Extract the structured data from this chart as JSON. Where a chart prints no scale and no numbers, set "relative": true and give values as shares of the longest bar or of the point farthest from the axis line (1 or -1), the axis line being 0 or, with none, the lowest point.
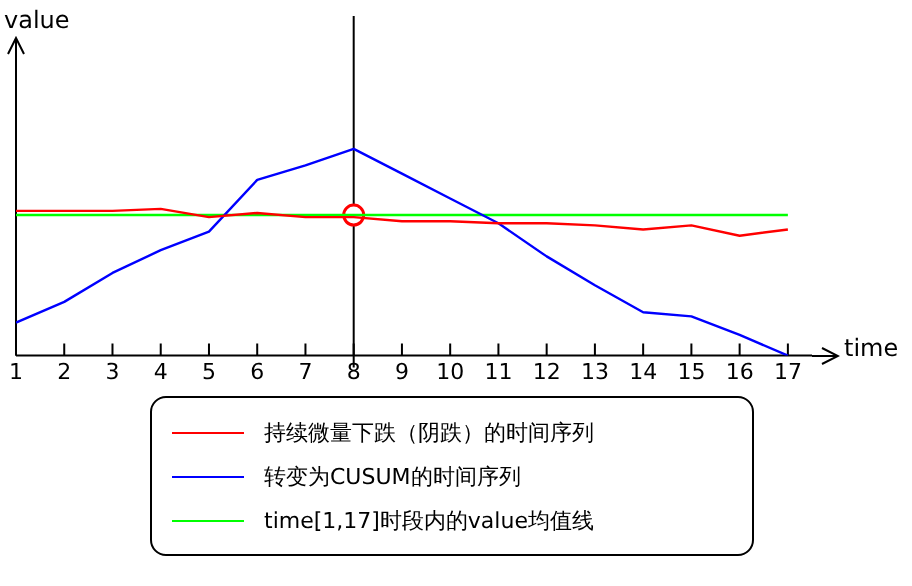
{
  "chart_data": {
    "type": "line",
    "relative": true,
    "xlabel": "time",
    "ylabel": "value",
    "x": [
      1,
      2,
      3,
      4,
      5,
      6,
      7,
      8,
      9,
      10,
      11,
      12,
      13,
      14,
      15,
      16,
      17
    ],
    "xlim": [
      1,
      17.5
    ],
    "xticks": [
      1,
      2,
      3,
      4,
      5,
      6,
      7,
      8,
      9,
      10,
      11,
      12,
      13,
      14,
      15,
      16,
      17
    ],
    "tick_labels": "x",
    "grid": false,
    "legend": "bottom",
    "marker": "none",
    "line_style": "solid",
    "ref_lines": [
      {
        "axis": "x",
        "value": 8,
        "color": "#000000"
      }
    ],
    "series": [
      {
        "name": "持续微量下跌（阴跌）的时间序列",
        "color": "#ff0000",
        "values": [
          0.7,
          0.7,
          0.7,
          0.71,
          0.67,
          0.69,
          0.67,
          0.67,
          0.65,
          0.65,
          0.64,
          0.64,
          0.63,
          0.61,
          0.63,
          0.58,
          0.61
        ]
      },
      {
        "name": "转变为CUSUM的时间序列",
        "color": "#0000ff",
        "values": [
          0.16,
          0.26,
          0.4,
          0.51,
          0.6,
          0.85,
          0.92,
          1,
          0.88,
          0.76,
          0.64,
          0.48,
          0.34,
          0.21,
          0.19,
          0.1,
          0
        ]
      },
      {
        "name": "time[1,17]时段内的value均值线",
        "color": "#00ff00",
        "values": [
          0.68,
          0.68,
          0.68,
          0.68,
          0.68,
          0.68,
          0.68,
          0.68,
          0.68,
          0.68,
          0.68,
          0.68,
          0.68,
          0.68,
          0.68,
          0.68,
          0.68
        ]
      },
      {
        "type": "scatter",
        "marker": "circle",
        "color": "#ff0000",
        "x": [
          8
        ],
        "values": [
          0.68
        ]
      }
    ]
  }
}
